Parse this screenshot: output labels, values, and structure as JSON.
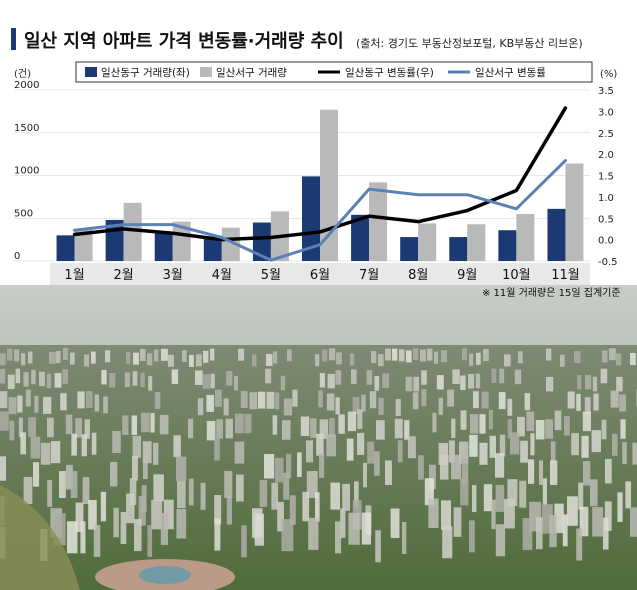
{
  "header": {
    "title": "일산 지역 아파트 가격 변동률·거래량 추이",
    "source": "(출처: 경기도 부동산정보포털, KB부동산 리브온)"
  },
  "note": "※ 11월 거래량은 15일 집계기준",
  "photo": {
    "description_icon": "city-aerial-photo"
  },
  "colors": {
    "dong_volume": "#1b3a73",
    "seo_volume": "#b9b9b9",
    "dong_rate": "#000000",
    "seo_rate": "#5b82b5",
    "title_bar": "#1b3a73"
  },
  "chart_data": {
    "type": "bar",
    "categories": [
      "1월",
      "2월",
      "3월",
      "4월",
      "5월",
      "6월",
      "7월",
      "8월",
      "9월",
      "10월",
      "11월"
    ],
    "left_axis": {
      "unit": "(건)",
      "range": [
        0,
        2000
      ],
      "ticks": [
        "0",
        "500",
        "1000",
        "1500",
        "2000"
      ]
    },
    "right_axis": {
      "unit": "(%)",
      "range": [
        -0.5,
        3.5
      ],
      "ticks": [
        "-0.5",
        "0.0",
        "0.5",
        "1.0",
        "1.5",
        "2.0",
        "2.5",
        "3.0",
        "3.5"
      ]
    },
    "series": [
      {
        "name": "일산동구 거래량(좌)",
        "kind": "bar",
        "axis": "left",
        "values": [
          300,
          480,
          340,
          280,
          450,
          990,
          540,
          280,
          280,
          360,
          610
        ]
      },
      {
        "name": "일산서구 거래량",
        "kind": "bar",
        "axis": "left",
        "values": [
          370,
          680,
          460,
          390,
          580,
          1770,
          920,
          440,
          430,
          550,
          1140
        ]
      },
      {
        "name": "일산동구 변동률(우)",
        "kind": "line",
        "axis": "right",
        "values": [
          0.12,
          0.25,
          0.15,
          0.0,
          0.05,
          0.18,
          0.55,
          0.42,
          0.68,
          1.15,
          3.08
        ]
      },
      {
        "name": "일산서구 변동률",
        "kind": "line",
        "axis": "right",
        "values": [
          0.22,
          0.35,
          0.35,
          0.05,
          -0.48,
          -0.12,
          1.18,
          1.05,
          1.05,
          0.72,
          1.85
        ]
      }
    ]
  }
}
